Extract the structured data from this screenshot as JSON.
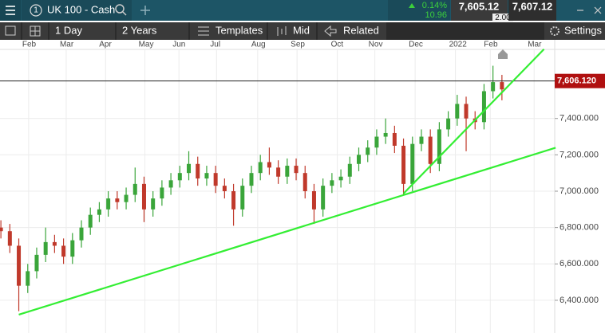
{
  "toolbar": {
    "instrument_number": "1",
    "instrument": "UK 100 - Cash",
    "change_pct": "0.14%",
    "change": "10.96",
    "sell": "7,605.12",
    "spread": "2.00",
    "buy": "7,607.12"
  },
  "menu": {
    "interval": "1 Day",
    "range": "2 Years",
    "templates": "Templates",
    "price_type": "Mid",
    "related": "Related",
    "settings": "Settings"
  },
  "chart_data": {
    "type": "candlestick",
    "x": [
      -3,
      -2,
      -1,
      0,
      1,
      2,
      3,
      4,
      5,
      6,
      7,
      8,
      9,
      10,
      11,
      12,
      13,
      14,
      15,
      16,
      17,
      18,
      19,
      20,
      21,
      22,
      23,
      24,
      25,
      26,
      27,
      28,
      29,
      30,
      31,
      32,
      33,
      34,
      35,
      36,
      37,
      38,
      39,
      40,
      41,
      42,
      43,
      44,
      45,
      46,
      47,
      48,
      49,
      50,
      51,
      52,
      53
    ],
    "open": [
      6800,
      6780,
      6700,
      6480,
      6560,
      6650,
      6720,
      6700,
      6640,
      6730,
      6800,
      6870,
      6900,
      6960,
      6940,
      6980,
      7040,
      6900,
      6960,
      7020,
      7060,
      7100,
      7150,
      7070,
      7100,
      7030,
      7000,
      6900,
      7030,
      7100,
      7160,
      7130,
      7080,
      7140,
      7100,
      7000,
      6900,
      7030,
      7060,
      7080,
      7150,
      7200,
      7240,
      7300,
      7320,
      7250,
      7040,
      7260,
      7300,
      7150,
      7340,
      7400,
      7480,
      7400,
      7380,
      7550,
      7600
    ],
    "high": [
      6840,
      6820,
      6740,
      6600,
      6690,
      6800,
      6760,
      6740,
      6770,
      6840,
      6910,
      6940,
      7000,
      7000,
      7020,
      7130,
      7080,
      7000,
      7060,
      7100,
      7140,
      7220,
      7190,
      7140,
      7140,
      7070,
      7040,
      7070,
      7140,
      7200,
      7240,
      7170,
      7180,
      7180,
      7140,
      7040,
      7070,
      7100,
      7120,
      7190,
      7240,
      7280,
      7340,
      7400,
      7360,
      7290,
      7300,
      7340,
      7340,
      7380,
      7440,
      7530,
      7520,
      7440,
      7590,
      7690,
      7640
    ],
    "low": [
      6740,
      6660,
      6340,
      6440,
      6520,
      6610,
      6660,
      6600,
      6600,
      6690,
      6760,
      6830,
      6860,
      6900,
      6900,
      6940,
      6830,
      6860,
      6920,
      6980,
      7020,
      7060,
      7030,
      7030,
      6990,
      6960,
      6810,
      6860,
      6990,
      7060,
      7090,
      7040,
      7040,
      7060,
      6960,
      6820,
      6860,
      6990,
      7020,
      7040,
      7110,
      7160,
      7200,
      7260,
      7210,
      6980,
      7000,
      7220,
      7100,
      7110,
      7300,
      7360,
      7220,
      7340,
      7340,
      7510,
      7500
    ],
    "close": [
      6780,
      6700,
      6480,
      6560,
      6650,
      6720,
      6700,
      6640,
      6730,
      6800,
      6870,
      6900,
      6960,
      6940,
      6980,
      7040,
      6900,
      6960,
      7020,
      7060,
      7100,
      7150,
      7070,
      7100,
      7030,
      7000,
      6900,
      7030,
      7100,
      7160,
      7130,
      7080,
      7140,
      7100,
      7000,
      6900,
      7030,
      7060,
      7080,
      7150,
      7200,
      7240,
      7300,
      7320,
      7250,
      7040,
      7260,
      7300,
      7150,
      7340,
      7400,
      7480,
      7400,
      7380,
      7550,
      7600,
      7560
    ],
    "up_color": "#3aa53a",
    "down_color": "#c0392b",
    "xlim": [
      -3.1,
      58.9
    ],
    "ylim": [
      6220,
      7780
    ],
    "grid": true,
    "xticks": [
      {
        "value": 0.1,
        "label": "Feb"
      },
      {
        "value": 4.3,
        "label": "Mar"
      },
      {
        "value": 8.7,
        "label": "Apr"
      },
      {
        "value": 13.1,
        "label": "May"
      },
      {
        "value": 16.9,
        "label": "Jun"
      },
      {
        "value": 21.1,
        "label": "Jul"
      },
      {
        "value": 25.7,
        "label": "Aug"
      },
      {
        "value": 30.1,
        "label": "Sep"
      },
      {
        "value": 34.6,
        "label": "Oct"
      },
      {
        "value": 38.8,
        "label": "Nov"
      },
      {
        "value": 43.3,
        "label": "Dec"
      },
      {
        "value": 47.8,
        "label": "2022"
      },
      {
        "value": 51.7,
        "label": "Feb"
      },
      {
        "value": 56.6,
        "label": "Mar"
      }
    ],
    "yticks": [
      {
        "value": 6400,
        "label": "6,400.000"
      },
      {
        "value": 6600,
        "label": "6,600.000"
      },
      {
        "value": 6800,
        "label": "6,800.000"
      },
      {
        "value": 7000,
        "label": "7,000.000"
      },
      {
        "value": 7200,
        "label": "7,200.000"
      },
      {
        "value": 7400,
        "label": "7,400.000"
      }
    ],
    "price_line": {
      "value": 7606.12,
      "label": "7,606.120",
      "color": "#b01010"
    },
    "trendlines": [
      {
        "x": [
          -1,
          59
        ],
        "y": [
          6321,
          7239
        ],
        "color": "#33ee33"
      },
      {
        "x": [
          42,
          57.7
        ],
        "y": [
          6987,
          7781
        ],
        "color": "#33ee33"
      }
    ]
  }
}
